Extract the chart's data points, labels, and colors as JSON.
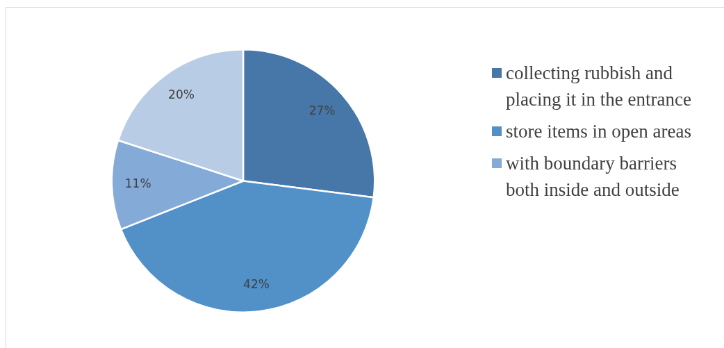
{
  "chart_data": {
    "type": "pie",
    "categories": [
      "collecting rubbish and placing it in the entrance",
      "store items in open areas",
      "with boundary barriers both inside and outside",
      null
    ],
    "values": [
      27,
      42,
      11,
      20
    ],
    "value_labels": [
      "27%",
      "42%",
      "11%",
      "20%"
    ],
    "colors": [
      "#4677a8",
      "#5290c8",
      "#84aad8",
      "#b8cce6"
    ],
    "legend": "right"
  }
}
